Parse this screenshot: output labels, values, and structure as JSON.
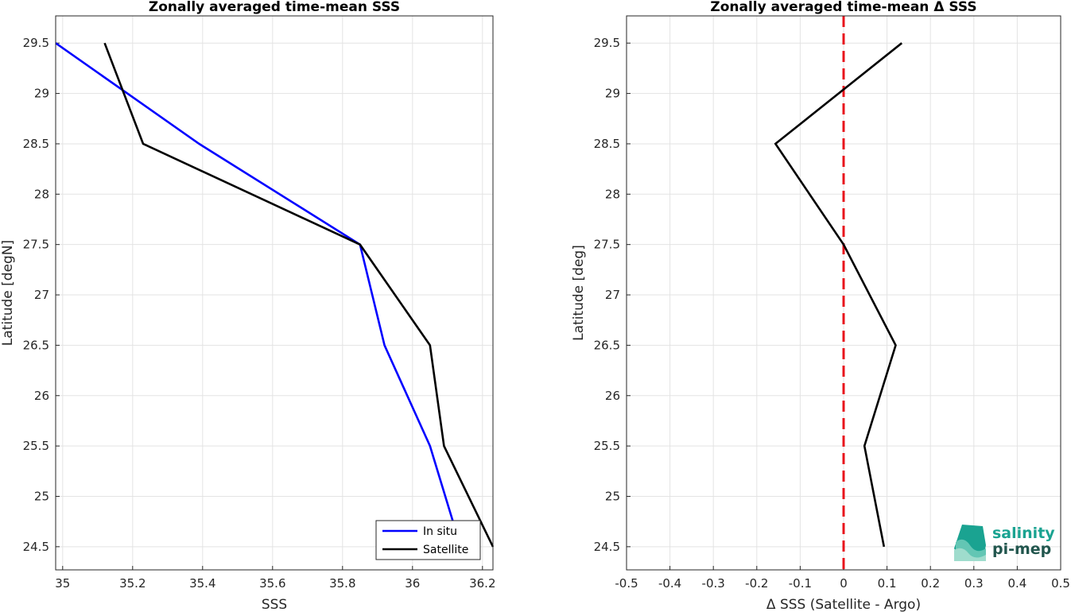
{
  "chart_data": [
    {
      "type": "line",
      "title": "Zonally averaged time-mean SSS",
      "xlabel": "SSS",
      "ylabel": "Latitude [degN]",
      "xlim": [
        34.98,
        36.23
      ],
      "ylim": [
        24.27,
        29.77
      ],
      "xticks": [
        "35",
        "35.2",
        "35.4",
        "35.6",
        "35.8",
        "36",
        "36.2"
      ],
      "yticks": [
        "24.5",
        "25",
        "25.5",
        "26",
        "26.5",
        "27",
        "27.5",
        "28",
        "28.5",
        "29",
        "29.5"
      ],
      "grid": true,
      "legend_position": "bottom-right",
      "series": [
        {
          "name": "In situ",
          "color": "#0000ff",
          "x": [
            34.98,
            35.39,
            35.85,
            35.92,
            36.05,
            36.12
          ],
          "y": [
            29.5,
            28.5,
            27.5,
            26.5,
            25.5,
            24.7
          ]
        },
        {
          "name": "Satellite",
          "color": "#000000",
          "x": [
            35.12,
            35.23,
            35.85,
            36.05,
            36.09,
            36.23
          ],
          "y": [
            29.5,
            28.5,
            27.5,
            26.5,
            25.5,
            24.5
          ]
        }
      ]
    },
    {
      "type": "line",
      "title": "Zonally averaged time-mean Δ SSS",
      "xlabel": "Δ SSS (Satellite - Argo)",
      "ylabel": "Latitude [deg]",
      "xlim": [
        -0.5,
        0.5
      ],
      "ylim": [
        24.27,
        29.77
      ],
      "xticks": [
        "-0.5",
        "-0.4",
        "-0.3",
        "-0.2",
        "-0.1",
        "0",
        "0.1",
        "0.2",
        "0.3",
        "0.4",
        "0.5"
      ],
      "yticks": [
        "24.5",
        "25",
        "25.5",
        "26",
        "26.5",
        "27",
        "27.5",
        "28",
        "28.5",
        "29",
        "29.5"
      ],
      "grid": true,
      "reference_line": {
        "x": 0,
        "color": "#e8141c",
        "style": "dashed"
      },
      "series": [
        {
          "color": "#000000",
          "x": [
            0.134,
            -0.157,
            0.0,
            0.12,
            0.048,
            0.093
          ],
          "y": [
            29.5,
            28.5,
            27.5,
            26.5,
            25.5,
            24.5
          ]
        }
      ]
    }
  ],
  "logo": {
    "line1": "salinity",
    "line2": "pi-mep",
    "color": "#1aa391"
  }
}
